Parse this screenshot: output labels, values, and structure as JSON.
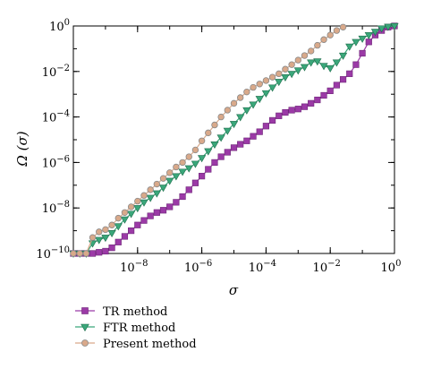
{
  "chart_data": {
    "type": "line",
    "xlabel": "σ",
    "ylabel": "Ω (σ)",
    "x_scale": "log",
    "y_scale": "log",
    "xlim": [
      1e-10,
      1
    ],
    "ylim": [
      1e-10,
      1
    ],
    "x_ticks": [
      {
        "value": 1e-08,
        "base": "10",
        "exp": "−8"
      },
      {
        "value": 1e-06,
        "base": "10",
        "exp": "−6"
      },
      {
        "value": 0.0001,
        "base": "10",
        "exp": "−4"
      },
      {
        "value": 0.01,
        "base": "10",
        "exp": "−2"
      },
      {
        "value": 1,
        "base": "10",
        "exp": "0"
      }
    ],
    "y_ticks": [
      {
        "value": 1e-10,
        "base": "10",
        "exp": "−10"
      },
      {
        "value": 1e-08,
        "base": "10",
        "exp": "−8"
      },
      {
        "value": 1e-06,
        "base": "10",
        "exp": "−6"
      },
      {
        "value": 0.0001,
        "base": "10",
        "exp": "−4"
      },
      {
        "value": 0.01,
        "base": "10",
        "exp": "−2"
      },
      {
        "value": 1,
        "base": "10",
        "exp": "0"
      }
    ],
    "grid": false,
    "legend_position": "below-left",
    "series": [
      {
        "name": "TR method",
        "marker": "square",
        "color": "#9b3aa6",
        "log10_points": [
          [
            -10.0,
            -10.0
          ],
          [
            -9.8,
            -10.0
          ],
          [
            -9.6,
            -10.0
          ],
          [
            -9.4,
            -10.0
          ],
          [
            -9.2,
            -9.95
          ],
          [
            -9.0,
            -9.9
          ],
          [
            -8.8,
            -9.75
          ],
          [
            -8.6,
            -9.5
          ],
          [
            -8.4,
            -9.25
          ],
          [
            -8.2,
            -9.0
          ],
          [
            -8.0,
            -8.75
          ],
          [
            -7.8,
            -8.55
          ],
          [
            -7.6,
            -8.35
          ],
          [
            -7.4,
            -8.2
          ],
          [
            -7.2,
            -8.1
          ],
          [
            -7.0,
            -7.95
          ],
          [
            -6.8,
            -7.75
          ],
          [
            -6.6,
            -7.5
          ],
          [
            -6.4,
            -7.2
          ],
          [
            -6.2,
            -6.9
          ],
          [
            -6.0,
            -6.6
          ],
          [
            -5.8,
            -6.3
          ],
          [
            -5.6,
            -6.0
          ],
          [
            -5.4,
            -5.75
          ],
          [
            -5.2,
            -5.55
          ],
          [
            -5.0,
            -5.35
          ],
          [
            -4.8,
            -5.2
          ],
          [
            -4.6,
            -5.05
          ],
          [
            -4.4,
            -4.85
          ],
          [
            -4.2,
            -4.65
          ],
          [
            -4.0,
            -4.4
          ],
          [
            -3.8,
            -4.15
          ],
          [
            -3.6,
            -3.95
          ],
          [
            -3.4,
            -3.8
          ],
          [
            -3.2,
            -3.7
          ],
          [
            -3.0,
            -3.65
          ],
          [
            -2.8,
            -3.55
          ],
          [
            -2.6,
            -3.4
          ],
          [
            -2.4,
            -3.25
          ],
          [
            -2.2,
            -3.05
          ],
          [
            -2.0,
            -2.85
          ],
          [
            -1.8,
            -2.6
          ],
          [
            -1.6,
            -2.35
          ],
          [
            -1.4,
            -2.1
          ],
          [
            -1.2,
            -1.7
          ],
          [
            -1.0,
            -1.2
          ],
          [
            -0.8,
            -0.7
          ],
          [
            -0.6,
            -0.4
          ],
          [
            -0.4,
            -0.2
          ],
          [
            -0.2,
            -0.05
          ],
          [
            0.0,
            0.0
          ]
        ]
      },
      {
        "name": "FTR method",
        "marker": "triangle-down",
        "color": "#3aa77a",
        "log10_points": [
          [
            -10.0,
            -10.0
          ],
          [
            -9.8,
            -10.0
          ],
          [
            -9.6,
            -10.0
          ],
          [
            -9.4,
            -9.55
          ],
          [
            -9.2,
            -9.4
          ],
          [
            -9.0,
            -9.3
          ],
          [
            -8.8,
            -9.1
          ],
          [
            -8.6,
            -8.8
          ],
          [
            -8.4,
            -8.5
          ],
          [
            -8.2,
            -8.25
          ],
          [
            -8.0,
            -8.0
          ],
          [
            -7.8,
            -7.75
          ],
          [
            -7.6,
            -7.55
          ],
          [
            -7.4,
            -7.35
          ],
          [
            -7.2,
            -7.1
          ],
          [
            -7.0,
            -6.8
          ],
          [
            -6.8,
            -6.6
          ],
          [
            -6.6,
            -6.4
          ],
          [
            -6.4,
            -6.25
          ],
          [
            -6.2,
            -6.05
          ],
          [
            -6.0,
            -5.8
          ],
          [
            -5.8,
            -5.5
          ],
          [
            -5.6,
            -5.2
          ],
          [
            -5.4,
            -4.9
          ],
          [
            -5.2,
            -4.6
          ],
          [
            -5.0,
            -4.3
          ],
          [
            -4.8,
            -4.0
          ],
          [
            -4.6,
            -3.7
          ],
          [
            -4.4,
            -3.45
          ],
          [
            -4.2,
            -3.2
          ],
          [
            -4.0,
            -2.95
          ],
          [
            -3.8,
            -2.7
          ],
          [
            -3.6,
            -2.45
          ],
          [
            -3.4,
            -2.25
          ],
          [
            -3.2,
            -2.1
          ],
          [
            -3.0,
            -1.95
          ],
          [
            -2.8,
            -1.8
          ],
          [
            -2.6,
            -1.6
          ],
          [
            -2.4,
            -1.55
          ],
          [
            -2.2,
            -1.75
          ],
          [
            -2.0,
            -1.85
          ],
          [
            -1.8,
            -1.6
          ],
          [
            -1.6,
            -1.3
          ],
          [
            -1.4,
            -0.9
          ],
          [
            -1.2,
            -0.7
          ],
          [
            -1.0,
            -0.55
          ],
          [
            -0.8,
            -0.4
          ],
          [
            -0.6,
            -0.25
          ],
          [
            -0.4,
            -0.1
          ],
          [
            -0.2,
            -0.03
          ],
          [
            0.0,
            0.0
          ]
        ]
      },
      {
        "name": "Present method",
        "marker": "circle",
        "color": "#d9a98a",
        "log10_points": [
          [
            -10.0,
            -10.0
          ],
          [
            -9.8,
            -10.0
          ],
          [
            -9.6,
            -10.0
          ],
          [
            -9.4,
            -9.3
          ],
          [
            -9.2,
            -9.05
          ],
          [
            -9.0,
            -8.95
          ],
          [
            -8.8,
            -8.75
          ],
          [
            -8.6,
            -8.45
          ],
          [
            -8.4,
            -8.2
          ],
          [
            -8.2,
            -7.95
          ],
          [
            -8.0,
            -7.7
          ],
          [
            -7.8,
            -7.45
          ],
          [
            -7.6,
            -7.2
          ],
          [
            -7.4,
            -6.95
          ],
          [
            -7.2,
            -6.7
          ],
          [
            -7.0,
            -6.45
          ],
          [
            -6.8,
            -6.2
          ],
          [
            -6.6,
            -6.0
          ],
          [
            -6.4,
            -5.75
          ],
          [
            -6.2,
            -5.45
          ],
          [
            -6.0,
            -5.05
          ],
          [
            -5.8,
            -4.7
          ],
          [
            -5.6,
            -4.35
          ],
          [
            -5.4,
            -4.0
          ],
          [
            -5.2,
            -3.7
          ],
          [
            -5.0,
            -3.4
          ],
          [
            -4.8,
            -3.15
          ],
          [
            -4.6,
            -2.9
          ],
          [
            -4.4,
            -2.7
          ],
          [
            -4.2,
            -2.55
          ],
          [
            -4.0,
            -2.4
          ],
          [
            -3.8,
            -2.25
          ],
          [
            -3.6,
            -2.1
          ],
          [
            -3.4,
            -1.9
          ],
          [
            -3.2,
            -1.7
          ],
          [
            -3.0,
            -1.5
          ],
          [
            -2.8,
            -1.3
          ],
          [
            -2.6,
            -1.1
          ],
          [
            -2.4,
            -0.85
          ],
          [
            -2.2,
            -0.6
          ],
          [
            -2.0,
            -0.4
          ],
          [
            -1.8,
            -0.2
          ],
          [
            -1.6,
            -0.05
          ]
        ]
      }
    ]
  }
}
